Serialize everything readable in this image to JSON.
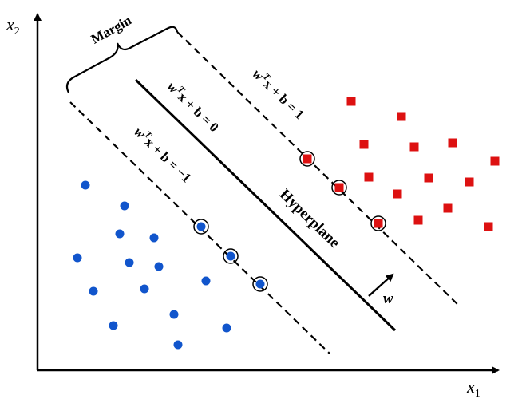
{
  "axes": {
    "x_label": {
      "base": "x",
      "subscript": "1"
    },
    "y_label": {
      "base": "x",
      "subscript": "2"
    }
  },
  "margin_label": "Margin",
  "hyperplane_label": "Hyperplane",
  "normal_label": "w",
  "equations": [
    {
      "weight": "w",
      "superscript": "T",
      "rest": "x + b = 1"
    },
    {
      "weight": "w",
      "superscript": "T",
      "rest": "x + b = 0"
    },
    {
      "weight": "w",
      "superscript": "T",
      "rest": "x + b = −1"
    }
  ]
}
